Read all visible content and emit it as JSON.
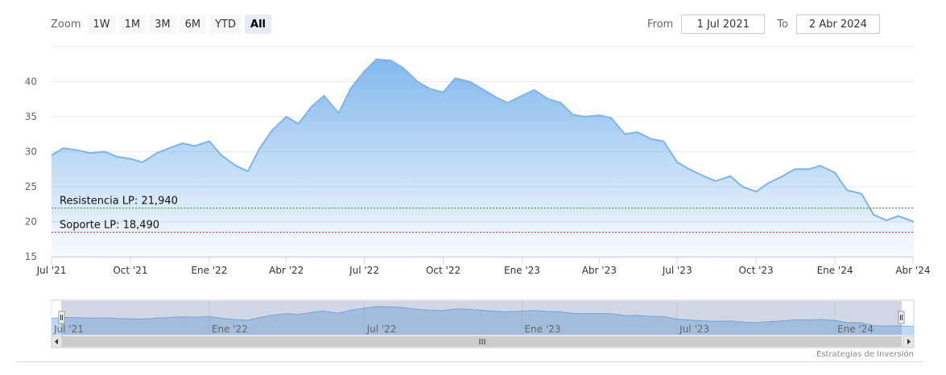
{
  "zoom": {
    "label": "Zoom",
    "buttons": [
      "1W",
      "1M",
      "3M",
      "6M",
      "YTD",
      "All"
    ],
    "active": "All"
  },
  "range": {
    "from_label": "From",
    "from_value": "1 Jul 2021",
    "to_label": "To",
    "to_value": "2 Abr 2024"
  },
  "credits": "Estrategias de Inversión",
  "colors": {
    "series_line": "#7cb5ec",
    "resistance": "#2e7d32",
    "support": "#c62828",
    "navigator_mask": "#667aa8"
  },
  "chart_data": {
    "type": "area",
    "x_start": "2021-07-01",
    "x_end": "2024-04-02",
    "ylim": [
      15,
      45
    ],
    "y_ticks": [
      15,
      20,
      25,
      30,
      35,
      40
    ],
    "x_tick_labels": [
      "Jul '21",
      "Oct '21",
      "Ene '22",
      "Abr '22",
      "Jul '22",
      "Oct '22",
      "Ene '23",
      "Abr '23",
      "Jul '23",
      "Oct '23",
      "Ene '24",
      "Abr '24"
    ],
    "navigator_tick_labels": [
      "Jul '21",
      "Ene '22",
      "Jul '22",
      "Ene '23",
      "Jul '23",
      "Ene '24"
    ],
    "series": [
      {
        "x": [
          "2021-07-01",
          "2021-07-15",
          "2021-08-01",
          "2021-08-15",
          "2021-09-01",
          "2021-09-15",
          "2021-10-01",
          "2021-10-15",
          "2021-11-01",
          "2021-11-15",
          "2021-12-01",
          "2021-12-15",
          "2022-01-01",
          "2022-01-15",
          "2022-02-01",
          "2022-02-15",
          "2022-03-01",
          "2022-03-15",
          "2022-04-01",
          "2022-04-15",
          "2022-05-01",
          "2022-05-15",
          "2022-06-01",
          "2022-06-15",
          "2022-07-01",
          "2022-07-15",
          "2022-08-01",
          "2022-08-15",
          "2022-09-01",
          "2022-09-15",
          "2022-10-01",
          "2022-10-15",
          "2022-11-01",
          "2022-11-15",
          "2022-12-01",
          "2022-12-15",
          "2023-01-01",
          "2023-01-15",
          "2023-02-01",
          "2023-02-15",
          "2023-03-01",
          "2023-03-15",
          "2023-04-01",
          "2023-04-15",
          "2023-05-01",
          "2023-05-15",
          "2023-06-01",
          "2023-06-15",
          "2023-07-01",
          "2023-07-15",
          "2023-08-01",
          "2023-08-15",
          "2023-09-01",
          "2023-09-15",
          "2023-10-01",
          "2023-10-15",
          "2023-11-01",
          "2023-11-15",
          "2023-12-01",
          "2023-12-15",
          "2024-01-01",
          "2024-01-15",
          "2024-02-01",
          "2024-02-15",
          "2024-03-01",
          "2024-03-15",
          "2024-04-02"
        ],
        "values": [
          29.5,
          30.5,
          30.2,
          29.8,
          30.0,
          29.3,
          29.0,
          28.5,
          29.8,
          30.5,
          31.2,
          30.8,
          31.5,
          29.5,
          28.0,
          27.2,
          30.5,
          33.0,
          35.0,
          34.0,
          36.5,
          38.0,
          35.5,
          39.0,
          41.5,
          43.2,
          43.0,
          42.0,
          40.0,
          39.0,
          38.5,
          40.5,
          40.0,
          39.0,
          37.8,
          37.0,
          38.0,
          38.8,
          37.5,
          37.0,
          35.3,
          35.0,
          35.2,
          34.8,
          32.5,
          32.8,
          31.8,
          31.5,
          28.5,
          27.5,
          26.5,
          25.8,
          26.5,
          25.0,
          24.3,
          25.5,
          26.5,
          27.5,
          27.5,
          28.0,
          27.0,
          24.5,
          24.0,
          21.0,
          20.2,
          20.8,
          20.0
        ]
      }
    ],
    "annotations": [
      {
        "label": "Resistencia LP: 21,940",
        "value": 21.94
      },
      {
        "label": "Soporte LP: 18,490",
        "value": 18.49
      }
    ],
    "grid": true,
    "legend": "none",
    "navigator": true
  }
}
